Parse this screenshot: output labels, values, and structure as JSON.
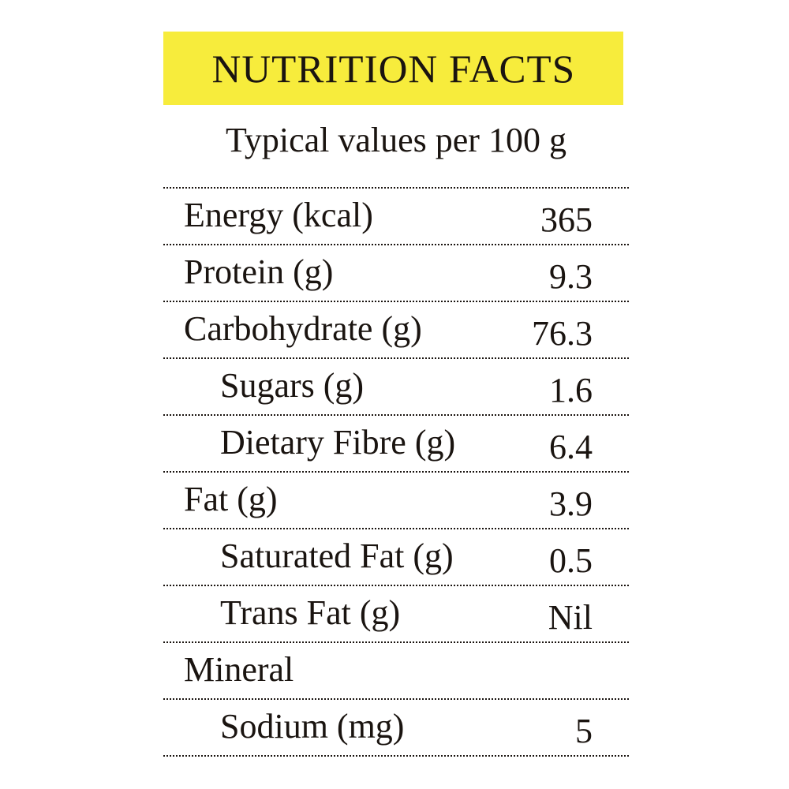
{
  "title": "NUTRITION FACTS",
  "subtitle": "Typical values per 100 g",
  "accent_color": "#f7ec3c",
  "rows": [
    {
      "label": "Energy (kcal)",
      "value": "365",
      "indent": false
    },
    {
      "label": "Protein (g)",
      "value": "9.3",
      "indent": false
    },
    {
      "label": "Carbohydrate (g)",
      "value": "76.3",
      "indent": false
    },
    {
      "label": "Sugars (g)",
      "value": "1.6",
      "indent": true
    },
    {
      "label": "Dietary Fibre (g)",
      "value": "6.4",
      "indent": true
    },
    {
      "label": "Fat (g)",
      "value": "3.9",
      "indent": false
    },
    {
      "label": "Saturated Fat (g)",
      "value": "0.5",
      "indent": true
    },
    {
      "label": "Trans Fat (g)",
      "value": "Nil",
      "indent": true
    },
    {
      "label": "Mineral",
      "value": "",
      "indent": false
    },
    {
      "label": "Sodium (mg)",
      "value": "5",
      "indent": true
    }
  ]
}
